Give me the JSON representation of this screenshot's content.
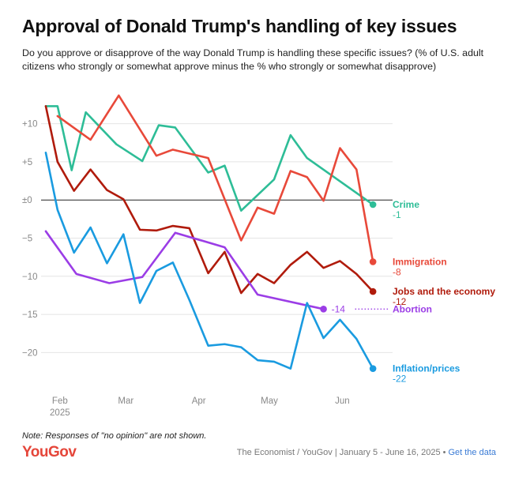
{
  "title": "Approval of Donald Trump's handling of key issues",
  "subtitle": "Do you approve or disapprove of the way Donald Trump is handling these specific issues? (% of U.S. adult citizens who strongly or somewhat approve minus the % who strongly or somewhat disapprove)",
  "note": "Note: Responses of \"no opinion\" are not shown.",
  "logo": "YouGov",
  "source": {
    "text": "The Economist / YouGov | January 5 - June 16, 2025",
    "separator": "•",
    "link": "Get the data"
  },
  "chart_data": {
    "type": "line",
    "x_axis": {
      "ticks": [
        {
          "date": "2025-02-01",
          "label": "Feb",
          "sublabel": "2025"
        },
        {
          "date": "2025-03-01",
          "label": "Mar"
        },
        {
          "date": "2025-04-01",
          "label": "Apr"
        },
        {
          "date": "2025-05-01",
          "label": "May"
        },
        {
          "date": "2025-06-01",
          "label": "Jun"
        }
      ],
      "range": [
        "2025-01-24",
        "2025-06-22"
      ]
    },
    "y_axis": {
      "ticks": [
        10,
        5,
        0,
        -5,
        -10,
        -15,
        -20
      ],
      "tick_labels": [
        "+10",
        "+5",
        "±0",
        "−5",
        "−10",
        "−15",
        "−20"
      ],
      "range": [
        -24,
        14
      ]
    },
    "grid": true,
    "series": [
      {
        "name": "Crime",
        "end_label": "-1",
        "color": "#2ebd97",
        "points": [
          [
            "2025-01-26",
            12.3
          ],
          [
            "2025-01-31",
            12.3
          ],
          [
            "2025-02-06",
            3.9
          ],
          [
            "2025-02-12",
            11.5
          ],
          [
            "2025-02-25",
            7.3
          ],
          [
            "2025-03-08",
            5.1
          ],
          [
            "2025-03-15",
            9.8
          ],
          [
            "2025-03-22",
            9.5
          ],
          [
            "2025-04-05",
            3.6
          ],
          [
            "2025-04-12",
            4.5
          ],
          [
            "2025-04-19",
            -1.4
          ],
          [
            "2025-05-03",
            2.7
          ],
          [
            "2025-05-10",
            8.5
          ],
          [
            "2025-05-17",
            5.5
          ],
          [
            "2025-06-14",
            -0.6
          ]
        ]
      },
      {
        "name": "Immigration",
        "end_label": "-8",
        "color": "#e8493a",
        "points": [
          [
            "2025-01-31",
            11.0
          ],
          [
            "2025-02-14",
            7.9
          ],
          [
            "2025-02-26",
            13.7
          ],
          [
            "2025-03-14",
            5.8
          ],
          [
            "2025-03-21",
            6.6
          ],
          [
            "2025-04-05",
            5.5
          ],
          [
            "2025-04-19",
            -5.3
          ],
          [
            "2025-04-26",
            -1.0
          ],
          [
            "2025-05-03",
            -1.8
          ],
          [
            "2025-05-10",
            3.8
          ],
          [
            "2025-05-17",
            3.0
          ],
          [
            "2025-05-24",
            -0.1
          ],
          [
            "2025-05-31",
            6.8
          ],
          [
            "2025-06-07",
            4.0
          ],
          [
            "2025-06-14",
            -8.1
          ]
        ]
      },
      {
        "name": "Jobs and the economy",
        "end_label": "-12",
        "color": "#b01b0c",
        "points": [
          [
            "2025-01-26",
            12.3
          ],
          [
            "2025-01-31",
            5.0
          ],
          [
            "2025-02-07",
            1.2
          ],
          [
            "2025-02-14",
            4.0
          ],
          [
            "2025-02-21",
            1.3
          ],
          [
            "2025-02-28",
            0.1
          ],
          [
            "2025-03-07",
            -3.9
          ],
          [
            "2025-03-14",
            -4.0
          ],
          [
            "2025-03-21",
            -3.4
          ],
          [
            "2025-03-28",
            -3.7
          ],
          [
            "2025-04-05",
            -9.6
          ],
          [
            "2025-04-12",
            -6.8
          ],
          [
            "2025-04-19",
            -12.2
          ],
          [
            "2025-04-26",
            -9.7
          ],
          [
            "2025-05-03",
            -10.9
          ],
          [
            "2025-05-10",
            -8.5
          ],
          [
            "2025-05-17",
            -6.8
          ],
          [
            "2025-05-24",
            -8.9
          ],
          [
            "2025-05-31",
            -8.0
          ],
          [
            "2025-06-07",
            -9.7
          ],
          [
            "2025-06-14",
            -12.0
          ]
        ]
      },
      {
        "name": "Abortion",
        "end_label": "-14",
        "color": "#9b3de6",
        "points": [
          [
            "2025-01-26",
            -4.1
          ],
          [
            "2025-02-08",
            -9.7
          ],
          [
            "2025-02-22",
            -10.9
          ],
          [
            "2025-03-08",
            -10.1
          ],
          [
            "2025-03-22",
            -4.3
          ],
          [
            "2025-04-12",
            -6.2
          ],
          [
            "2025-04-26",
            -12.4
          ],
          [
            "2025-05-24",
            -14.3
          ]
        ]
      },
      {
        "name": "Inflation/prices",
        "end_label": "-22",
        "color": "#1a9be0",
        "points": [
          [
            "2025-01-26",
            6.2
          ],
          [
            "2025-01-31",
            -1.3
          ],
          [
            "2025-02-07",
            -6.9
          ],
          [
            "2025-02-14",
            -3.6
          ],
          [
            "2025-02-21",
            -8.3
          ],
          [
            "2025-02-28",
            -4.5
          ],
          [
            "2025-03-07",
            -13.5
          ],
          [
            "2025-03-14",
            -9.3
          ],
          [
            "2025-03-21",
            -8.2
          ],
          [
            "2025-03-28",
            -13.1
          ],
          [
            "2025-04-05",
            -19.1
          ],
          [
            "2025-04-12",
            -18.9
          ],
          [
            "2025-04-19",
            -19.3
          ],
          [
            "2025-04-26",
            -21.0
          ],
          [
            "2025-05-03",
            -21.2
          ],
          [
            "2025-05-10",
            -22.1
          ],
          [
            "2025-05-17",
            -13.5
          ],
          [
            "2025-05-24",
            -18.1
          ],
          [
            "2025-05-31",
            -15.7
          ],
          [
            "2025-06-07",
            -18.2
          ],
          [
            "2025-06-14",
            -22.1
          ]
        ]
      }
    ]
  }
}
